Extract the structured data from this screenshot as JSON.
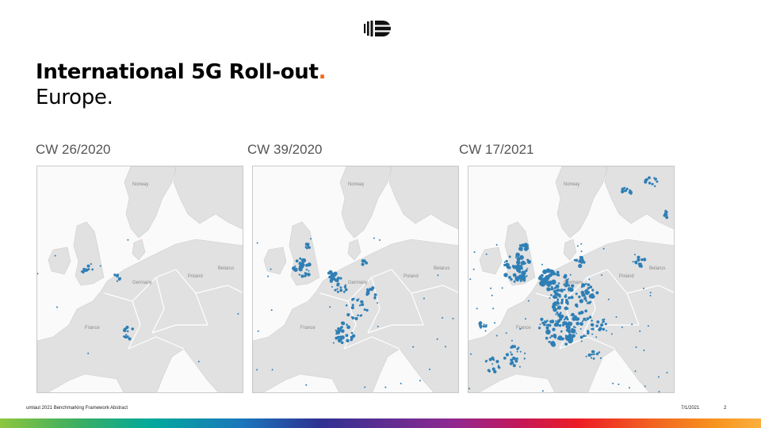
{
  "slide": {
    "title": "International 5G Roll-out",
    "title_dot": ".",
    "subtitle": "Europe.",
    "accent_color": "#f26a1b",
    "logo_icon": "umlaut-logo-icon"
  },
  "maps": [
    {
      "label": "CW 26/2020",
      "place_labels": [
        "Norway",
        "Germany",
        "Poland",
        "Belarus",
        "France"
      ]
    },
    {
      "label": "CW 39/2020",
      "place_labels": [
        "Norway",
        "Germany",
        "Poland",
        "Belarus",
        "France"
      ]
    },
    {
      "label": "CW 17/2021",
      "place_labels": [
        "Norway",
        "Germany",
        "Poland",
        "Belarus",
        "France"
      ]
    }
  ],
  "coverage_color": "#2f7fb5",
  "footer": {
    "left": "umlaut 2021 Benchmarking Framework Abstract",
    "date": "7/1/2021",
    "page": "2"
  }
}
